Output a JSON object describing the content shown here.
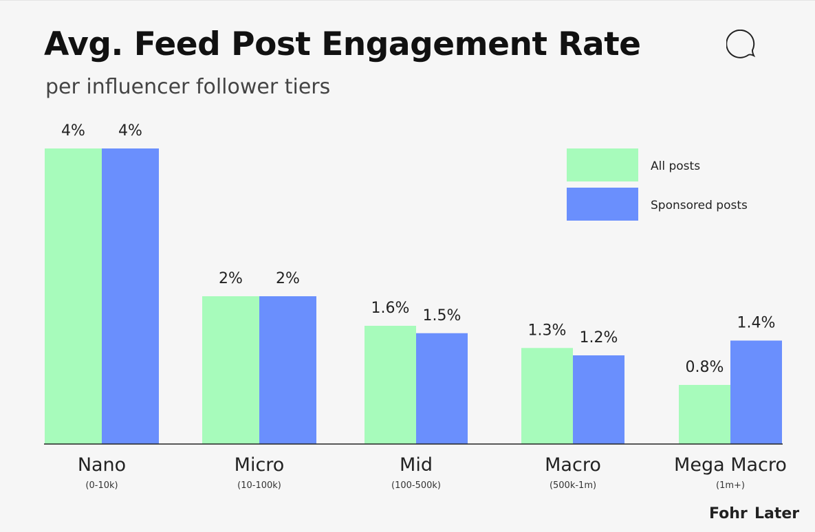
{
  "chart_data": {
    "type": "bar",
    "title": "Avg. Feed Post Engagement Rate",
    "subtitle": "per influencer follower tiers",
    "categories": [
      "Nano",
      "Micro",
      "Mid",
      "Macro",
      "Mega Macro"
    ],
    "category_sublabels": [
      "(0-10k)",
      "(10-100k)",
      "(100-500k)",
      "(500k-1m)",
      "(1m+)"
    ],
    "series": [
      {
        "name": "All posts",
        "values": [
          4,
          2,
          1.6,
          1.3,
          0.8
        ],
        "labels": [
          "4%",
          "2%",
          "1.6%",
          "1.3%",
          "0.8%"
        ],
        "color": "#a7fbbb"
      },
      {
        "name": "Sponsored posts",
        "values": [
          4,
          2,
          1.5,
          1.2,
          1.4
        ],
        "labels": [
          "4%",
          "2%",
          "1.5%",
          "1.2%",
          "1.4%"
        ],
        "color": "#6a8ffd"
      }
    ],
    "ylim": [
      0,
      4
    ],
    "grid": false,
    "legend": "top-right"
  },
  "icons": {
    "title_icon": "speech-bubble-icon"
  },
  "logos": {
    "fohr": "Fohr",
    "later": "Later"
  }
}
